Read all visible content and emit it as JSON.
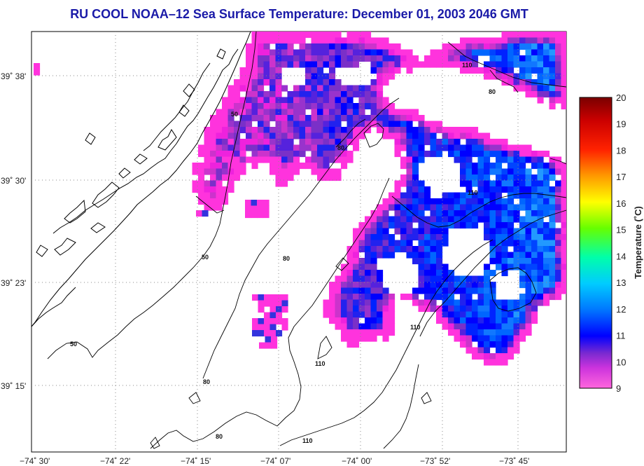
{
  "title": "RU COOL  NOAA–12  Sea Surface Temperature:  December 01, 2003 2046 GMT",
  "map": {
    "longitude_labels": [
      "−74˚ 30'",
      "−74˚ 22'",
      "−74˚ 15'",
      "−74˚ 07'",
      "−74˚ 00'",
      "−73˚ 52'",
      "−73˚ 45'"
    ],
    "latitude_labels": [
      "39˚ 38'",
      "39˚ 30'",
      "39˚ 23'",
      "39˚ 15'"
    ],
    "contour_labels": [
      "50",
      "50",
      "50",
      "80",
      "80",
      "80",
      "80",
      "80",
      "110",
      "110",
      "110",
      "110",
      "110"
    ],
    "colors": {
      "coast": "#000000",
      "grid": "#888888",
      "contour": "#000000"
    }
  },
  "colorbar": {
    "title": "Temperature (˚C)",
    "min": 9,
    "max": 20,
    "tick_labels": [
      "20",
      "19",
      "18",
      "17",
      "16",
      "15",
      "14",
      "13",
      "12",
      "11",
      "10",
      "9"
    ],
    "colors": [
      "#ff33cc",
      "#7f2bc8",
      "#0000ff",
      "#00c8ff",
      "#00ffcc",
      "#7fff00",
      "#ffff00",
      "#ff9900",
      "#ff0000",
      "#8b0000"
    ]
  }
}
